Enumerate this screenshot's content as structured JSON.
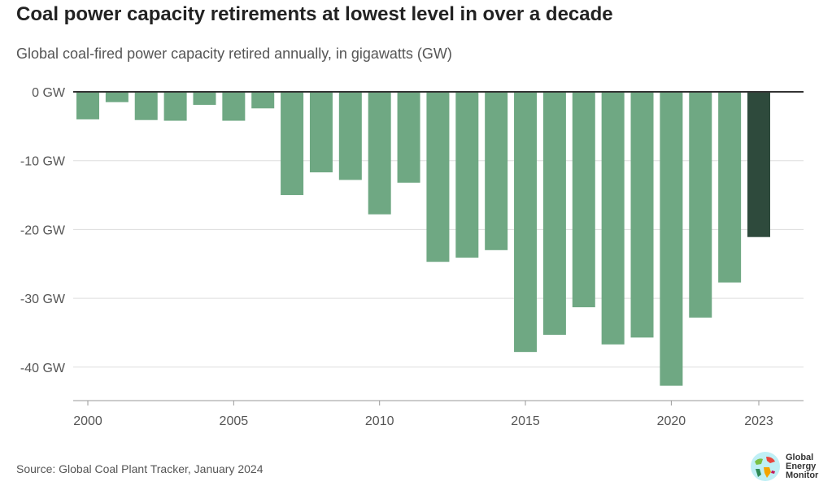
{
  "chart_data": {
    "type": "bar",
    "title": "Coal power capacity retirements at lowest level in over a decade",
    "subtitle": "Global coal-fired power capacity retired annually, in gigawatts (GW)",
    "xlabel": "",
    "ylabel": "",
    "categories": [
      2000,
      2001,
      2002,
      2003,
      2004,
      2005,
      2006,
      2007,
      2008,
      2009,
      2010,
      2011,
      2012,
      2013,
      2014,
      2015,
      2016,
      2017,
      2018,
      2019,
      2020,
      2021,
      2022,
      2023
    ],
    "values": [
      -4.0,
      -1.5,
      -4.1,
      -4.2,
      -1.9,
      -4.2,
      -2.4,
      -15.0,
      -11.7,
      -12.8,
      -17.8,
      -13.2,
      -24.7,
      -24.1,
      -23.0,
      -37.8,
      -35.3,
      -31.3,
      -36.7,
      -35.7,
      -42.7,
      -32.8,
      -27.7,
      -21.1
    ],
    "highlight": 2023,
    "ylim": [
      -45,
      0
    ],
    "yticks": [
      0,
      -10,
      -20,
      -30,
      -40
    ],
    "ytick_labels": [
      "0 GW",
      "-10 GW",
      "-20 GW",
      "-30 GW",
      "-40 GW"
    ],
    "xticks": [
      "2000",
      "2005",
      "2010",
      "2015",
      "2020",
      "2023"
    ],
    "grid": true,
    "colors": {
      "bar": "#6fa883",
      "highlight": "#2e4a3c"
    }
  },
  "source": "Source: Global Coal Plant Tracker, January 2024",
  "logo": {
    "text": "Global Energy Monitor"
  }
}
